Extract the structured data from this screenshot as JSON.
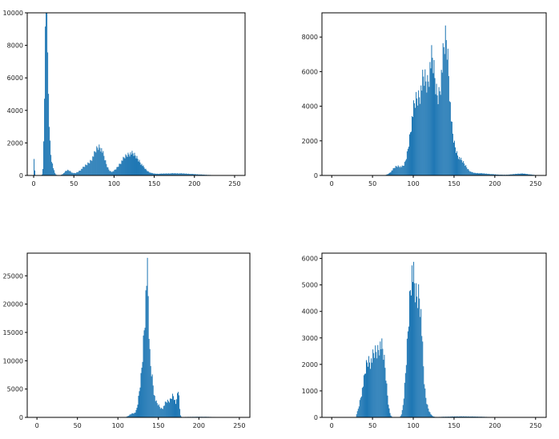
{
  "colors": {
    "bar": "#1f77b4",
    "axes": "#000000",
    "background": "#ffffff"
  },
  "chart_data": [
    {
      "type": "bar",
      "title": "",
      "xlabel": "",
      "ylabel": "",
      "xlim": [
        -8,
        263
      ],
      "ylim": [
        0,
        10000
      ],
      "xticks": [
        0,
        50,
        100,
        150,
        200,
        250
      ],
      "yticks": [
        0,
        2000,
        4000,
        6000,
        8000,
        10000
      ],
      "grid": false,
      "peaks": [
        {
          "x": 0,
          "y": 1350,
          "w": 0.6
        },
        {
          "x": 14,
          "y": 7200,
          "w": 1.3
        },
        {
          "x": 15.5,
          "y": 9300,
          "w": 0.7
        },
        {
          "x": 17,
          "y": 5600,
          "w": 1.6
        },
        {
          "x": 20,
          "y": 1300,
          "w": 3
        },
        {
          "x": 42,
          "y": 350,
          "w": 4
        },
        {
          "x": 70,
          "y": 800,
          "w": 10
        },
        {
          "x": 82,
          "y": 1600,
          "w": 6
        },
        {
          "x": 110,
          "y": 500,
          "w": 8
        },
        {
          "x": 123,
          "y": 1350,
          "w": 10
        },
        {
          "x": 175,
          "y": 150,
          "w": 25
        }
      ],
      "range": [
        0,
        230
      ]
    },
    {
      "type": "bar",
      "title": "",
      "xlabel": "",
      "ylabel": "",
      "xlim": [
        -12,
        263
      ],
      "ylim": [
        0,
        9400
      ],
      "xticks": [
        0,
        50,
        100,
        150,
        200,
        250
      ],
      "yticks": [
        0,
        2000,
        4000,
        6000,
        8000
      ],
      "grid": false,
      "peaks": [
        {
          "x": 80,
          "y": 600,
          "w": 6
        },
        {
          "x": 100,
          "y": 2600,
          "w": 6
        },
        {
          "x": 110,
          "y": 4000,
          "w": 8
        },
        {
          "x": 113,
          "y": 2000,
          "w": 3
        },
        {
          "x": 122,
          "y": 4800,
          "w": 4
        },
        {
          "x": 130,
          "y": 3500,
          "w": 6
        },
        {
          "x": 137,
          "y": 4500,
          "w": 4
        },
        {
          "x": 141,
          "y": 3800,
          "w": 3
        },
        {
          "x": 146,
          "y": 2200,
          "w": 5
        },
        {
          "x": 158,
          "y": 800,
          "w": 6
        },
        {
          "x": 175,
          "y": 150,
          "w": 20
        },
        {
          "x": 232,
          "y": 120,
          "w": 10
        }
      ],
      "range": [
        65,
        250
      ]
    },
    {
      "type": "bar",
      "title": "",
      "xlabel": "",
      "ylabel": "",
      "xlim": [
        -12,
        263
      ],
      "ylim": [
        0,
        29000
      ],
      "xticks": [
        0,
        50,
        100,
        150,
        200,
        250
      ],
      "yticks": [
        0,
        5000,
        10000,
        15000,
        20000,
        25000
      ],
      "grid": false,
      "peaks": [
        {
          "x": 118,
          "y": 800,
          "w": 4
        },
        {
          "x": 128,
          "y": 6000,
          "w": 3
        },
        {
          "x": 133,
          "y": 16000,
          "w": 2.5
        },
        {
          "x": 136,
          "y": 17000,
          "w": 1.6
        },
        {
          "x": 140,
          "y": 9000,
          "w": 3
        },
        {
          "x": 148,
          "y": 2500,
          "w": 4
        },
        {
          "x": 160,
          "y": 3000,
          "w": 4
        },
        {
          "x": 168,
          "y": 4000,
          "w": 3
        },
        {
          "x": 174,
          "y": 5000,
          "w": 1.3
        },
        {
          "x": 200,
          "y": 120,
          "w": 20
        }
      ],
      "range": [
        100,
        250
      ]
    },
    {
      "type": "bar",
      "title": "",
      "xlabel": "",
      "ylabel": "",
      "xlim": [
        -12,
        263
      ],
      "ylim": [
        0,
        6200
      ],
      "xticks": [
        0,
        50,
        100,
        150,
        200,
        250
      ],
      "yticks": [
        0,
        1000,
        2000,
        3000,
        4000,
        5000,
        6000
      ],
      "grid": false,
      "peaks": [
        {
          "x": 35,
          "y": 400,
          "w": 3
        },
        {
          "x": 44,
          "y": 2400,
          "w": 5
        },
        {
          "x": 52,
          "y": 1500,
          "w": 3
        },
        {
          "x": 59,
          "y": 2800,
          "w": 4
        },
        {
          "x": 65,
          "y": 1200,
          "w": 3
        },
        {
          "x": 92,
          "y": 2000,
          "w": 3
        },
        {
          "x": 97,
          "y": 3800,
          "w": 3
        },
        {
          "x": 102,
          "y": 4000,
          "w": 4
        },
        {
          "x": 108,
          "y": 3500,
          "w": 3
        },
        {
          "x": 114,
          "y": 600,
          "w": 4
        },
        {
          "x": 160,
          "y": 40,
          "w": 25
        }
      ],
      "range": [
        30,
        210
      ]
    }
  ]
}
